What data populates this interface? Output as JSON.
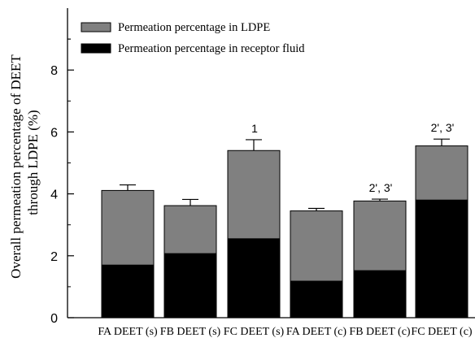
{
  "chart_data": {
    "type": "bar",
    "stacked": true,
    "categories": [
      "FA DEET (s)",
      "FB DEET (s)",
      "FC DEET (s)",
      "FA DEET (c)",
      "FB DEET (c)",
      "FC DEET (c)"
    ],
    "series": [
      {
        "name": "Permeation percentage in receptor fluid",
        "values": [
          1.7,
          2.07,
          2.55,
          1.18,
          1.52,
          3.8
        ],
        "color": "#000000"
      },
      {
        "name": "Permeation percentage in LDPE",
        "values": [
          2.41,
          1.55,
          2.85,
          2.27,
          2.25,
          1.75
        ],
        "color": "#808080"
      }
    ],
    "totals": [
      4.11,
      3.62,
      5.4,
      3.45,
      3.77,
      5.55
    ],
    "error_bars": [
      0.18,
      0.2,
      0.35,
      0.08,
      0.06,
      0.22
    ],
    "annotations": [
      "",
      "",
      "1",
      "",
      "2', 3'",
      "2', 3'"
    ],
    "ylabel_line1": "Overall permeation percentage of DEET",
    "ylabel_line2": "through LDPE   (%)",
    "xlabel": "",
    "title": "",
    "ylim": [
      0,
      10
    ],
    "yticks": [
      0,
      2,
      4,
      6,
      8
    ],
    "legend_position": "top-left",
    "grid": false
  }
}
